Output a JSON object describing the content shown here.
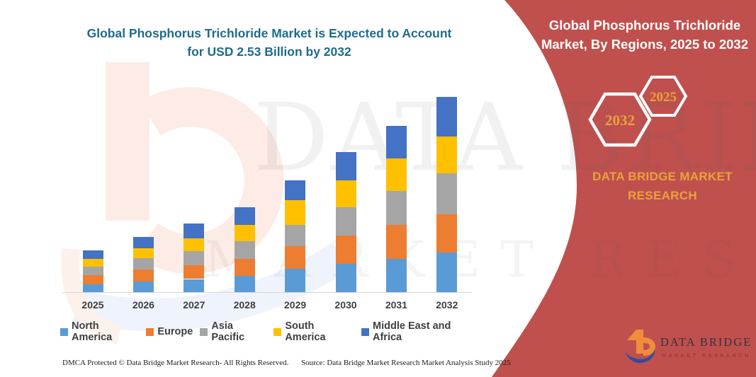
{
  "page": {
    "title_line1": "Global Phosphorus Trichloride Market is Expected to Account",
    "title_line2": "for USD 2.53 Billion by 2032"
  },
  "side_panel": {
    "heading_line1": "Global Phosphorus Trichloride",
    "heading_line2": "Market, By Regions, 2025 to 2032",
    "hexagon_left_year": "2032",
    "hexagon_right_year": "2025",
    "brand_text": "DATA BRIDGE MARKET RESEARCH",
    "panel_color": "#C0504D",
    "accent_gold": "#E8A33D",
    "title_teal": "#1F6B8C"
  },
  "logo": {
    "name_text": "DATA BRIDGE",
    "subtitle_text": "MARKET RESEARCH"
  },
  "watermark": {
    "row1": "DATA BRIDGE",
    "row2": "MARKET RESEARCH"
  },
  "footer": {
    "dmca": "DMCA Protected © Data Bridge Market Research-  All Rights Reserved.",
    "source": "Source: Data Bridge Market Research  Market Analysis Study 2025"
  },
  "chart_data": {
    "type": "bar",
    "stacked": true,
    "unit": "USD Billion",
    "title": "Global Phosphorus Trichloride Market, By Regions, 2025 to 2032",
    "xlabel": "",
    "ylabel": "",
    "ylim": [
      0,
      2.6
    ],
    "gridlines": false,
    "y_axis_shown": false,
    "legend_position": "bottom",
    "categories": [
      "2025",
      "2026",
      "2027",
      "2028",
      "2029",
      "2030",
      "2031",
      "2032"
    ],
    "series": [
      {
        "name": "North America",
        "color": "#5B9BD5",
        "values": [
          0.1,
          0.14,
          0.17,
          0.21,
          0.3,
          0.37,
          0.43,
          0.51
        ]
      },
      {
        "name": "Europe",
        "color": "#ED7D31",
        "values": [
          0.12,
          0.15,
          0.18,
          0.22,
          0.3,
          0.36,
          0.44,
          0.5
        ]
      },
      {
        "name": "Asia Pacific",
        "color": "#A5A5A5",
        "values": [
          0.11,
          0.15,
          0.18,
          0.23,
          0.27,
          0.37,
          0.44,
          0.53
        ]
      },
      {
        "name": "South America",
        "color": "#FFC000",
        "values": [
          0.1,
          0.13,
          0.17,
          0.21,
          0.32,
          0.35,
          0.42,
          0.48
        ]
      },
      {
        "name": "Middle East and Africa",
        "color": "#4472C4",
        "values": [
          0.11,
          0.15,
          0.19,
          0.23,
          0.26,
          0.37,
          0.43,
          0.51
        ]
      }
    ],
    "totals": [
      0.54,
      0.72,
      0.89,
      1.1,
      1.45,
      1.82,
      2.16,
      2.53
    ]
  }
}
